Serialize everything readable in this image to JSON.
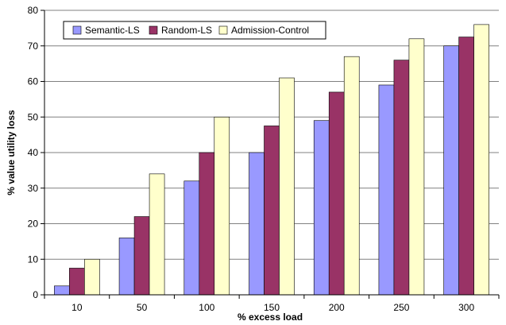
{
  "chart_data": {
    "type": "bar",
    "categories": [
      "10",
      "50",
      "100",
      "150",
      "200",
      "250",
      "300"
    ],
    "series": [
      {
        "name": "Semantic-LS",
        "values": [
          2.5,
          16,
          32,
          40,
          49,
          59,
          70
        ],
        "color": "#9999FF"
      },
      {
        "name": "Random-LS",
        "values": [
          7.5,
          22,
          40,
          47.5,
          57,
          66,
          72.5
        ],
        "color": "#993366"
      },
      {
        "name": "Admission-Control",
        "values": [
          10,
          34,
          50,
          61,
          67,
          72,
          76
        ],
        "color": "#FFFFCC"
      }
    ],
    "xlabel": "% excess load",
    "ylabel": "% value utility loss",
    "ylim": [
      0,
      80
    ],
    "yticks": [
      0,
      10,
      20,
      30,
      40,
      50,
      60,
      70,
      80
    ],
    "grid": true,
    "legend_position": "top-left"
  }
}
